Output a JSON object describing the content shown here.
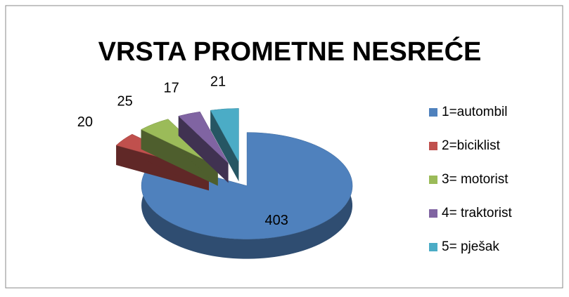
{
  "chart_data": {
    "type": "pie3d",
    "title": "VRSTA PROMETNE NESREĆE",
    "categories": [
      "1=autombil",
      "2=biciklist",
      "3= motorist",
      "4= traktorist",
      "5= pješak"
    ],
    "values": [
      403,
      20,
      25,
      17,
      21
    ],
    "colors": [
      "#4f81bd",
      "#c0504d",
      "#9bbb59",
      "#8064a2",
      "#4bacc6"
    ],
    "legend": "right"
  }
}
